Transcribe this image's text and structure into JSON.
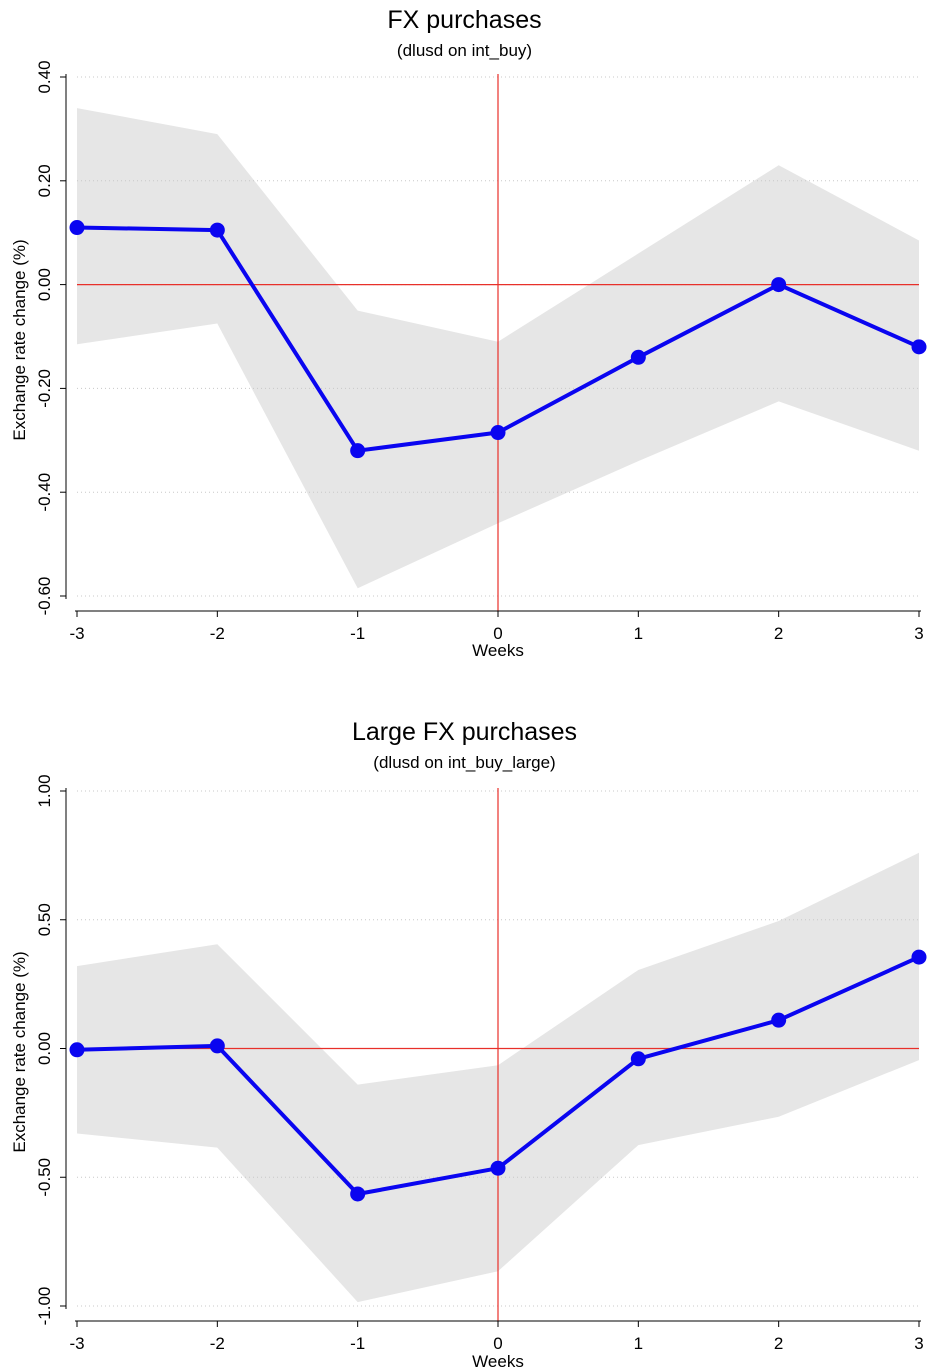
{
  "chart_data": [
    {
      "type": "line",
      "title": "FX purchases",
      "subtitle": "(dlusd on int_buy)",
      "xlabel": "Weeks",
      "ylabel": "Exchange rate change (%)",
      "x": [
        -3,
        -2,
        -1,
        0,
        1,
        2,
        3
      ],
      "xticks": [
        "-3",
        "-2",
        "-1",
        "0",
        "1",
        "2",
        "3"
      ],
      "yticks": [
        {
          "value": 0.4,
          "label": "0.40"
        },
        {
          "value": 0.2,
          "label": "0.20"
        },
        {
          "value": 0.0,
          "label": "0.00"
        },
        {
          "value": -0.2,
          "label": "-0.20"
        },
        {
          "value": -0.4,
          "label": "-0.40"
        },
        {
          "value": -0.6,
          "label": "-0.60"
        }
      ],
      "ylim": [
        -0.6,
        0.4
      ],
      "xlim": [
        -3,
        3
      ],
      "grid": true,
      "reference_lines": {
        "x": 0,
        "y": 0,
        "color": "#e8302a"
      },
      "series": [
        {
          "values": [
            0.11,
            0.105,
            -0.32,
            -0.285,
            -0.14,
            0.0,
            -0.12
          ],
          "ci_upper": [
            0.34,
            0.29,
            -0.05,
            -0.11,
            0.06,
            0.23,
            0.085
          ],
          "ci_lower": [
            -0.115,
            -0.075,
            -0.585,
            -0.46,
            -0.34,
            -0.225,
            -0.32
          ],
          "color": "#0a05f0",
          "band_color": "#e6e6e6"
        }
      ]
    },
    {
      "type": "line",
      "title": "Large FX purchases",
      "subtitle": "(dlusd on int_buy_large)",
      "xlabel": "Weeks",
      "ylabel": "Exchange rate change (%)",
      "x": [
        -3,
        -2,
        -1,
        0,
        1,
        2,
        3
      ],
      "xticks": [
        "-3",
        "-2",
        "-1",
        "0",
        "1",
        "2",
        "3"
      ],
      "yticks": [
        {
          "value": 1.0,
          "label": "1.00"
        },
        {
          "value": 0.5,
          "label": "0.50"
        },
        {
          "value": 0.0,
          "label": "0.00"
        },
        {
          "value": -0.5,
          "label": "-0.50"
        },
        {
          "value": -1.0,
          "label": "-1.00"
        }
      ],
      "ylim": [
        -1.0,
        1.0
      ],
      "xlim": [
        -3,
        3
      ],
      "grid": true,
      "reference_lines": {
        "x": 0,
        "y": 0,
        "color": "#e8302a"
      },
      "series": [
        {
          "values": [
            -0.005,
            0.01,
            -0.565,
            -0.465,
            -0.04,
            0.11,
            0.355
          ],
          "ci_upper": [
            0.32,
            0.405,
            -0.14,
            -0.065,
            0.305,
            0.495,
            0.76
          ],
          "ci_lower": [
            -0.33,
            -0.385,
            -0.985,
            -0.865,
            -0.375,
            -0.265,
            -0.045
          ],
          "color": "#0a05f0",
          "band_color": "#e6e6e6"
        }
      ]
    }
  ]
}
